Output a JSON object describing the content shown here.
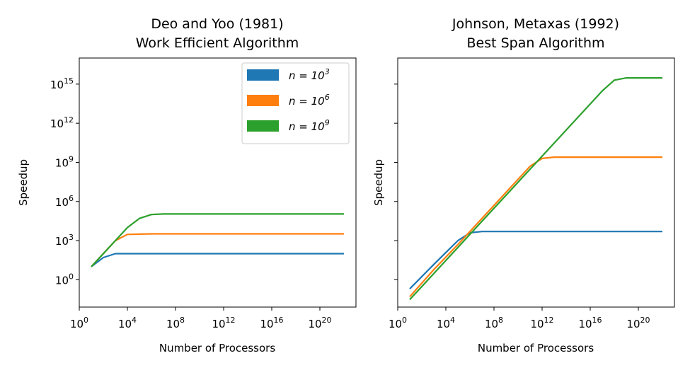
{
  "chart_data": [
    {
      "type": "line",
      "title": "Deo and Yoo (1981)",
      "subtitle": "Work Efficient Algorithm",
      "xlabel": "Number of Processors",
      "ylabel": "Speedup",
      "xscale": "log",
      "yscale": "log",
      "xlim": [
        1,
        1e+23
      ],
      "ylim": [
        0.008,
        1e+17
      ],
      "xtick_labels": [
        "10^0",
        "10^4",
        "10^8",
        "10^12",
        "10^16",
        "10^20"
      ],
      "ytick_labels": [
        "10^0",
        "10^3",
        "10^6",
        "10^9",
        "10^12",
        "10^15"
      ],
      "legend": "top-right",
      "series": [
        {
          "name": "n = 10^3",
          "color": "#1f77b4",
          "x": [
            10,
            100,
            1000,
            10000.0,
            1000000.0,
            1000000000.0,
            1000000000000.0,
            1000000000000000.0,
            1e+18,
            1e+21,
            1e+22
          ],
          "y": [
            10,
            50,
            100,
            100,
            100,
            100,
            100,
            100,
            100,
            100,
            100
          ]
        },
        {
          "name": "n = 10^6",
          "color": "#ff7f0e",
          "x": [
            10,
            100,
            1000,
            10000.0,
            1000000.0,
            1000000000.0,
            1000000000000.0,
            1000000000000000.0,
            1e+18,
            1e+21,
            1e+22
          ],
          "y": [
            10,
            100,
            1000,
            3000,
            3300,
            3300,
            3300,
            3300,
            3300,
            3300,
            3300
          ]
        },
        {
          "name": "n = 10^9",
          "color": "#2ca02c",
          "x": [
            10,
            100,
            1000,
            10000.0,
            100000.0,
            1000000.0,
            10000000.0,
            1000000000.0,
            1000000000000.0,
            1000000000000000.0,
            1e+18,
            1e+21,
            1e+22
          ],
          "y": [
            10,
            100,
            1000,
            10000,
            50000,
            100000,
            110000,
            110000,
            110000,
            110000,
            110000,
            110000,
            110000
          ]
        }
      ]
    },
    {
      "type": "line",
      "title": "Johnson, Metaxas (1992)",
      "subtitle": "Best Span Algorithm",
      "xlabel": "Number of Processors",
      "ylabel": "Speedup",
      "xscale": "log",
      "yscale": "log",
      "xlim": [
        1,
        1e+23
      ],
      "ylim": [
        0.008,
        1e+17
      ],
      "xtick_labels": [
        "10^0",
        "10^4",
        "10^8",
        "10^12",
        "10^16",
        "10^20"
      ],
      "ytick_labels": [
        "",
        "",
        "",
        "",
        "",
        ""
      ],
      "series": [
        {
          "name": "n = 10^3",
          "color": "#1f77b4",
          "x": [
            10,
            1000,
            100000.0,
            1000000.0,
            10000000.0,
            1000000000.0,
            1000000000000.0,
            1000000000000000.0,
            1e+18,
            1e+21,
            1e+22
          ],
          "y": [
            0.2,
            15,
            1000,
            4000,
            5000,
            5000,
            5000,
            5000,
            5000,
            5000,
            5000
          ]
        },
        {
          "name": "n = 10^6",
          "color": "#ff7f0e",
          "x": [
            10,
            1000,
            100000.0,
            10000000.0,
            1000000000.0,
            100000000000.0,
            1000000000000.0,
            10000000000000.0,
            1000000000000000.0,
            1e+18,
            1e+21,
            1e+22
          ],
          "y": [
            0.05,
            6,
            500,
            50000,
            5000000.0,
            500000000.0,
            2000000000.0,
            2500000000.0,
            2500000000.0,
            2500000000.0,
            2500000000.0,
            2500000000.0
          ]
        },
        {
          "name": "n = 10^9",
          "color": "#2ca02c",
          "x": [
            10,
            1000,
            100000.0,
            10000000.0,
            1000000000.0,
            1000000000000.0,
            1000000000000000.0,
            1e+17,
            1e+18,
            1e+19,
            1e+21,
            1e+22
          ],
          "y": [
            0.03,
            3,
            300,
            30000,
            3000000.0,
            3000000000.0,
            3000000000000.0,
            300000000000000.0,
            2000000000000000.0,
            3000000000000000.0,
            3000000000000000.0,
            3000000000000000.0
          ]
        }
      ]
    }
  ]
}
